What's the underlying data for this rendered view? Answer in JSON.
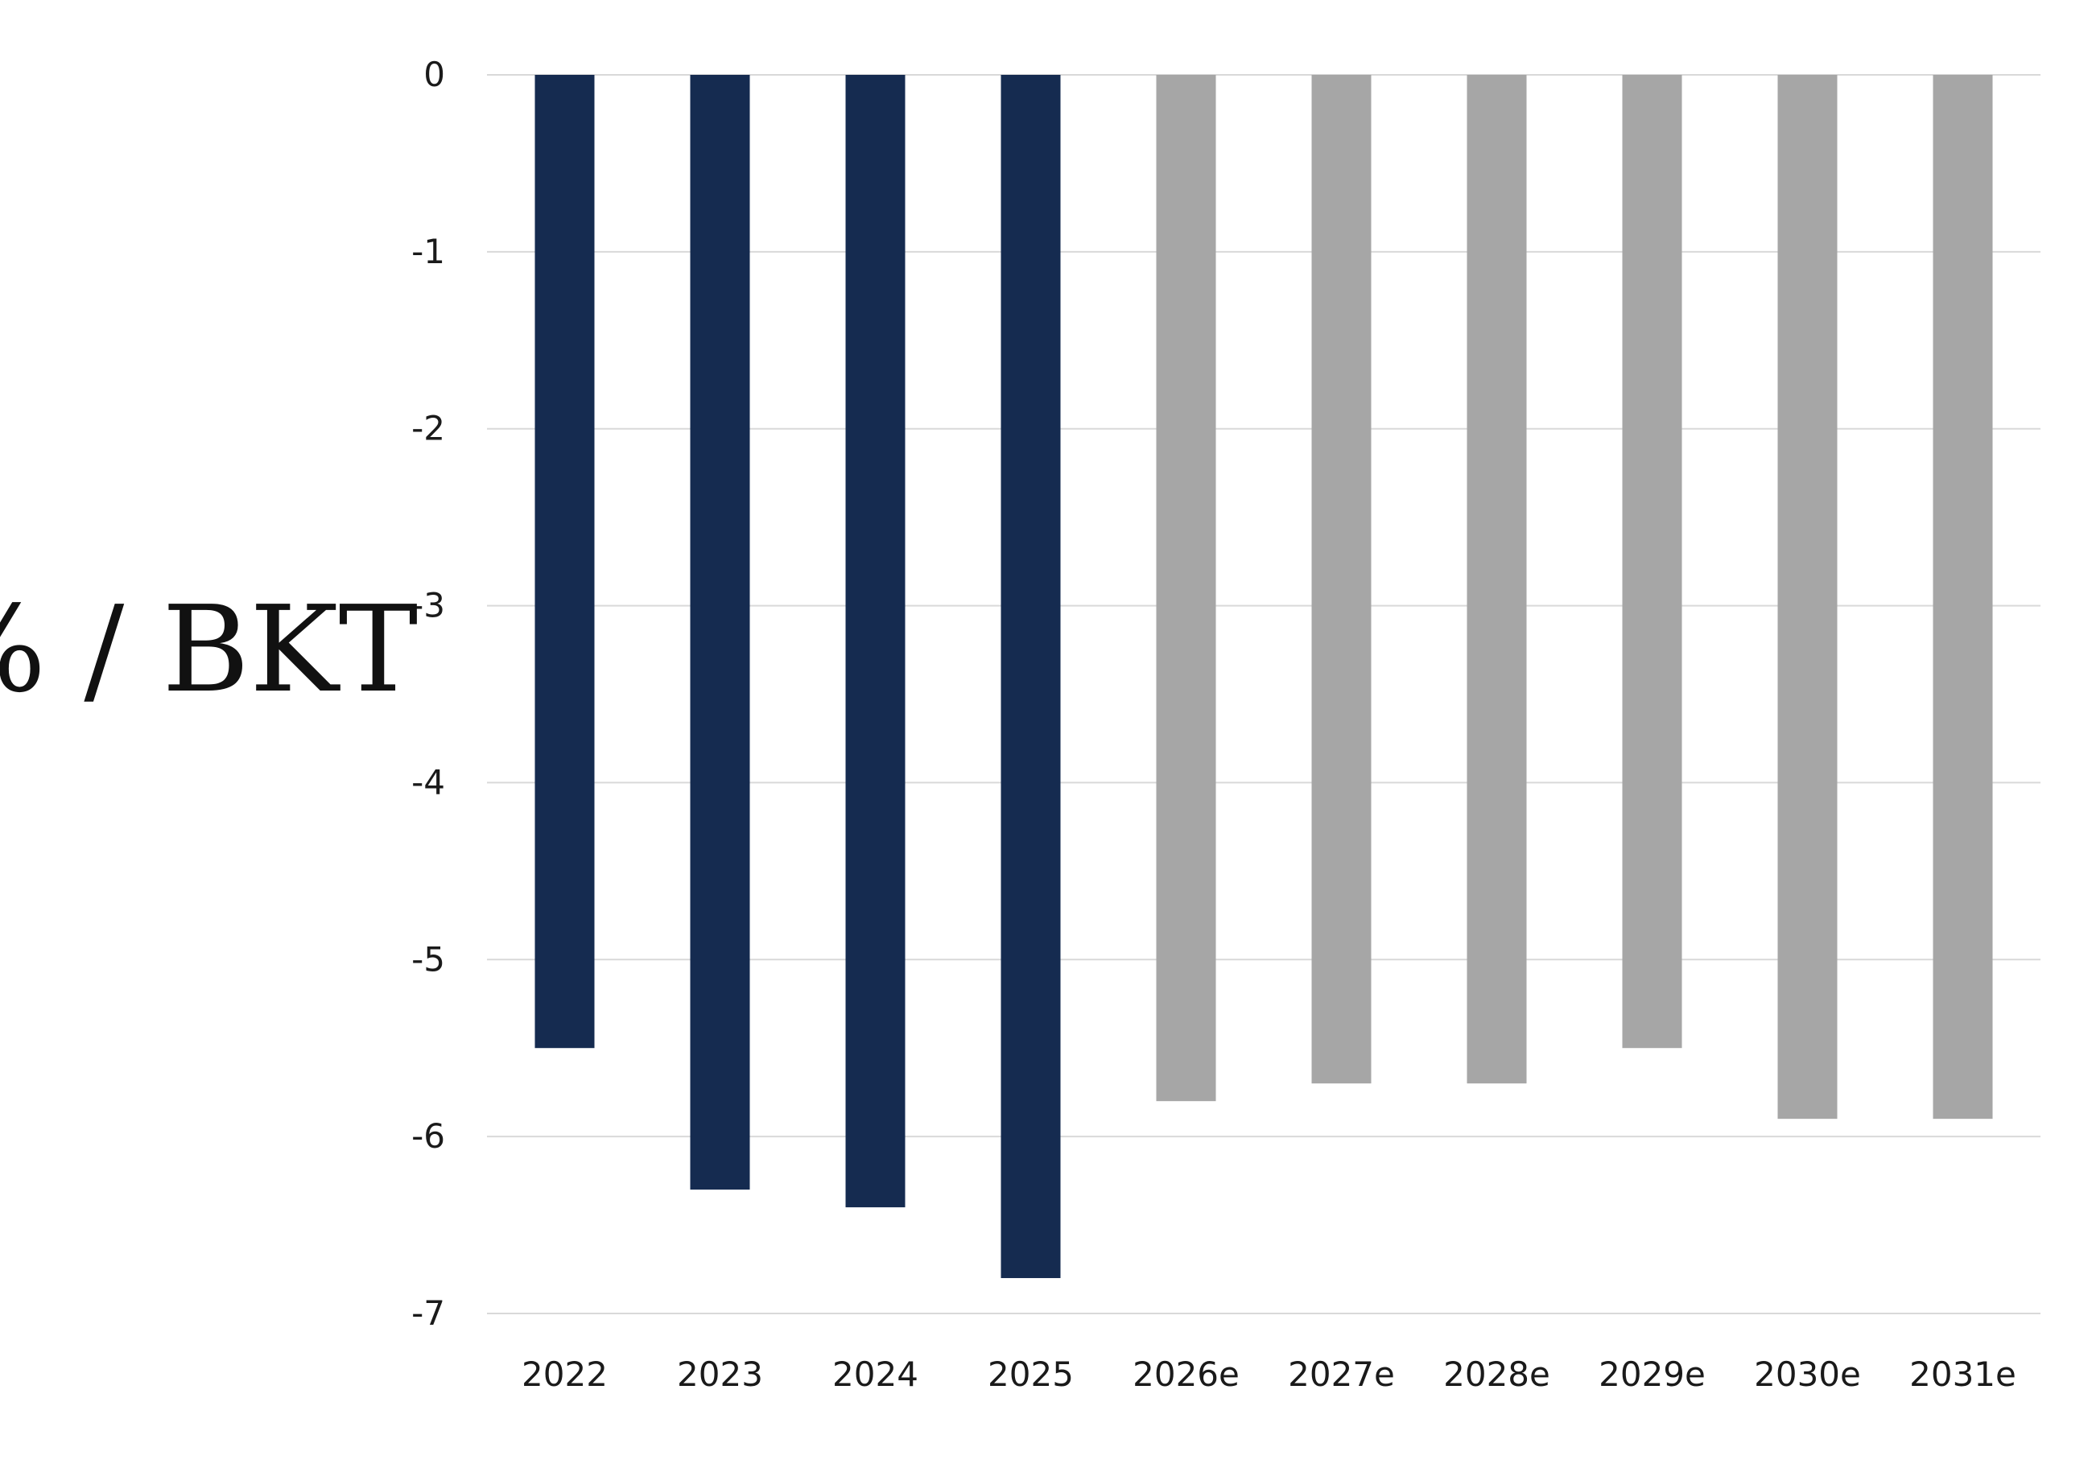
{
  "chart_data": {
    "type": "bar",
    "title": "",
    "xlabel": "",
    "ylabel": "% / BKT",
    "categories": [
      "2022",
      "2023",
      "2024",
      "2025",
      "2026e",
      "2027e",
      "2028e",
      "2029e",
      "2030e",
      "2031e"
    ],
    "values": [
      -5.5,
      -6.3,
      -6.4,
      -6.8,
      -5.8,
      -5.7,
      -5.7,
      -5.5,
      -5.9,
      -5.9
    ],
    "series": [
      {
        "values": [
          -5.5,
          -6.3,
          -6.4,
          -6.8,
          null,
          null,
          null,
          null,
          null,
          null
        ],
        "color": "#152b50"
      },
      {
        "values": [
          null,
          null,
          null,
          null,
          -5.8,
          -5.7,
          -5.7,
          -5.5,
          -5.9,
          -5.9
        ],
        "color": "#a6a6a6"
      }
    ],
    "ylim": [
      -7,
      0
    ],
    "yticks": [
      "0",
      "-1",
      "-2",
      "-3",
      "-4",
      "-5",
      "-6",
      "-7"
    ],
    "grid": true,
    "legend": "none",
    "colors": {
      "actual": "#152b50",
      "estimate": "#a6a6a6",
      "grid": "#d9d9d9"
    }
  }
}
